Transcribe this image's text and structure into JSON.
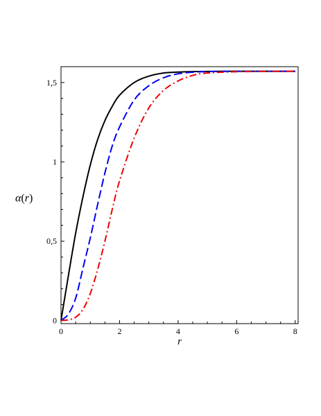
{
  "chart_data": {
    "type": "line",
    "xlabel": "r",
    "ylabel": {
      "symbol": "α",
      "open": "(",
      "arg": "r",
      "close": ")"
    },
    "xlim": [
      0,
      8.1
    ],
    "ylim": [
      -0.02,
      1.6
    ],
    "x_ticks": [
      {
        "value": 0,
        "label": "0"
      },
      {
        "value": 2,
        "label": "2"
      },
      {
        "value": 4,
        "label": "4"
      },
      {
        "value": 6,
        "label": "6"
      },
      {
        "value": 8,
        "label": "8"
      }
    ],
    "y_ticks": [
      {
        "value": 0,
        "label": "0"
      },
      {
        "value": 0.5,
        "label": "0,5"
      },
      {
        "value": 1,
        "label": "1"
      },
      {
        "value": 1.5,
        "label": "1,5"
      }
    ],
    "grid": false,
    "series": [
      {
        "color": "#000000",
        "style": "solid",
        "x": [
          0,
          0.25,
          0.5,
          0.75,
          1.0,
          1.25,
          1.5,
          1.75,
          2.0,
          2.5,
          3.0,
          3.5,
          4.0,
          4.5,
          5.0,
          6.0,
          7.0,
          8.0
        ],
        "y": [
          0,
          0.28,
          0.55,
          0.78,
          0.98,
          1.14,
          1.26,
          1.35,
          1.42,
          1.5,
          1.54,
          1.56,
          1.566,
          1.569,
          1.57,
          1.571,
          1.571,
          1.571
        ]
      },
      {
        "color": "#0000ee",
        "style": "dashed",
        "x": [
          0,
          0.25,
          0.5,
          0.75,
          1.0,
          1.25,
          1.5,
          1.75,
          2.0,
          2.5,
          3.0,
          3.5,
          4.0,
          4.5,
          5.0,
          6.0,
          7.0,
          8.0
        ],
        "y": [
          0,
          0.04,
          0.14,
          0.33,
          0.52,
          0.73,
          0.93,
          1.1,
          1.22,
          1.39,
          1.48,
          1.53,
          1.555,
          1.565,
          1.569,
          1.571,
          1.571,
          1.571
        ]
      },
      {
        "color": "#ee0000",
        "style": "dashdot",
        "x": [
          0,
          0.25,
          0.5,
          0.75,
          1.0,
          1.25,
          1.5,
          1.75,
          2.0,
          2.5,
          3.0,
          3.5,
          4.0,
          4.5,
          5.0,
          6.0,
          7.0,
          8.0
        ],
        "y": [
          0,
          0.004,
          0.02,
          0.07,
          0.17,
          0.32,
          0.5,
          0.7,
          0.88,
          1.15,
          1.34,
          1.45,
          1.51,
          1.545,
          1.56,
          1.568,
          1.57,
          1.571
        ]
      }
    ]
  }
}
